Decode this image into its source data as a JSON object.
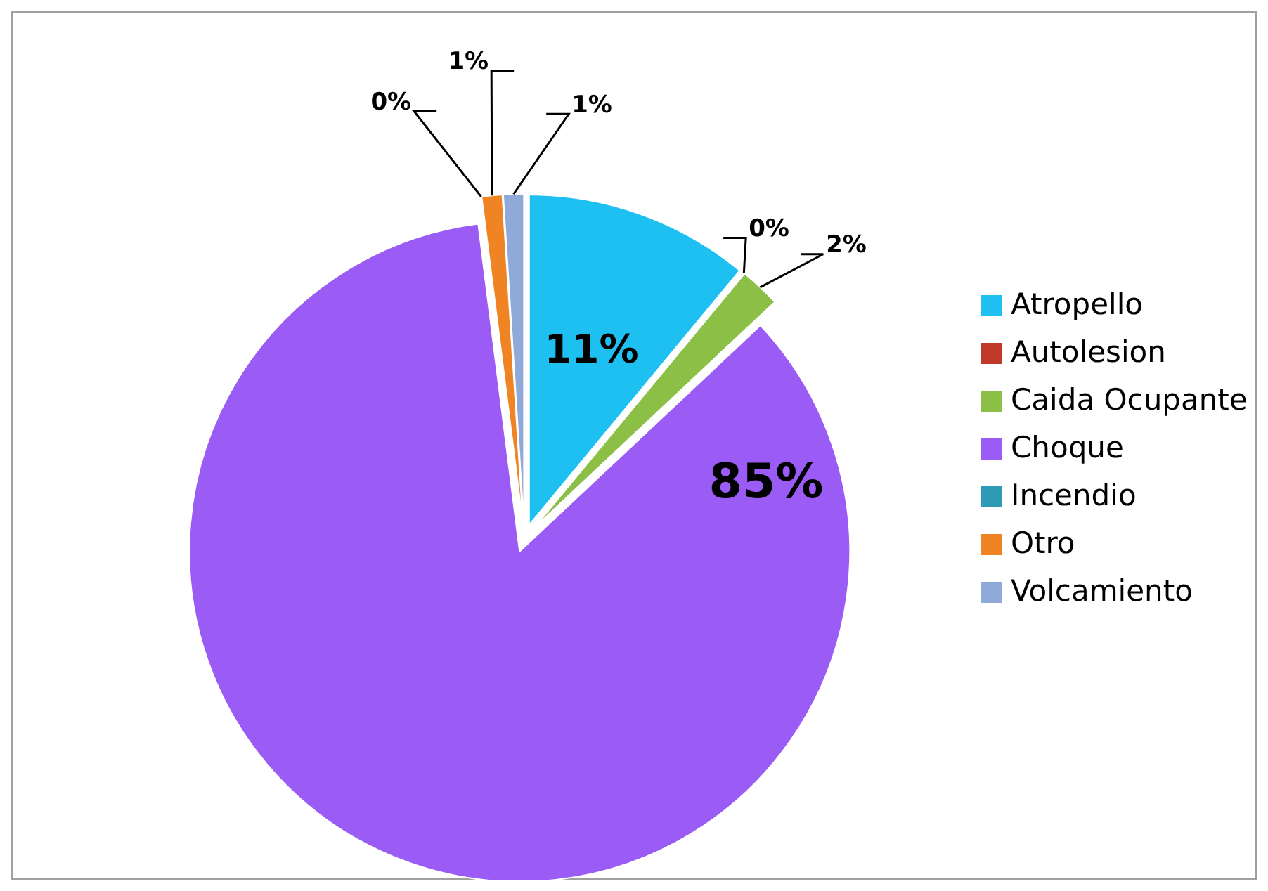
{
  "chart_data": {
    "type": "pie",
    "categories": [
      "Atropello",
      "Autolesion",
      "Caida Ocupante",
      "Choque",
      "Incendio",
      "Otro",
      "Volcamiento"
    ],
    "values": [
      11,
      0,
      2,
      85,
      0,
      1,
      1
    ],
    "colors": [
      "#1ec0f2",
      "#c0392b",
      "#8cbf45",
      "#9a5cf5",
      "#2e9ab5",
      "#f08424",
      "#8fa9d9"
    ],
    "value_labels": [
      "11%",
      "0%",
      "2%",
      "85%",
      "0%",
      "1%",
      "1%"
    ],
    "legend": "right"
  }
}
